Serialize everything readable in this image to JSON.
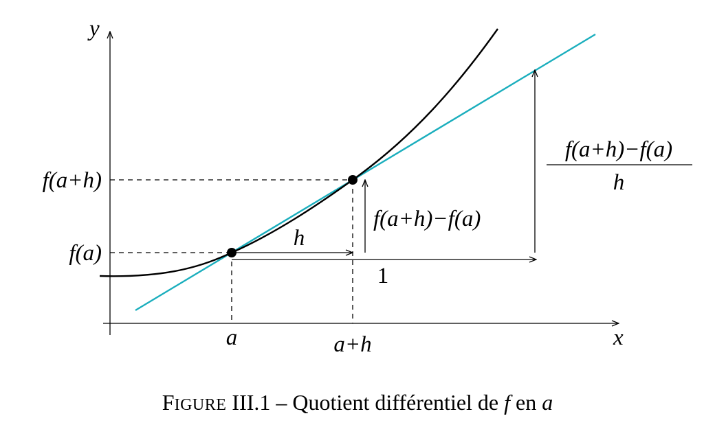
{
  "axes": {
    "x_label": "x",
    "y_label": "y"
  },
  "x_ticks": {
    "a": "a",
    "a_plus_h": "a+h"
  },
  "y_ticks": {
    "fa": "f(a)",
    "fah": "f(a+h)"
  },
  "annotations": {
    "h": "h",
    "one": "1",
    "difference": "f(a+h)−f(a)",
    "quotient_numerator": "f(a+h)−f(a)",
    "quotient_denominator": "h"
  },
  "caption": {
    "figure_first_letter": "F",
    "figure_rest": "IGURE",
    "number": "III.1",
    "dash": "–",
    "text": "Quotient différentiel de",
    "f": "f",
    "en": "en",
    "a": "a"
  },
  "colors": {
    "curve": "#000000",
    "secant": "#1aaebd",
    "axes": "#000000"
  }
}
